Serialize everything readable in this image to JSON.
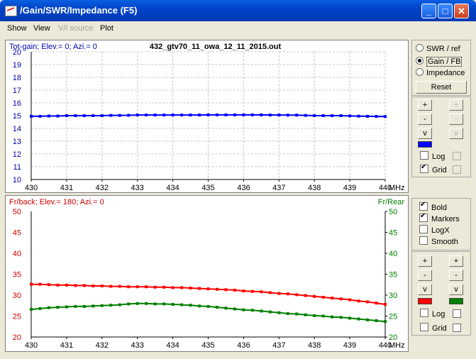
{
  "window": {
    "title": "/Gain/SWR/Impedance (F5)",
    "minimize_glyph": "_",
    "maximize_glyph": "□",
    "close_glyph": "✕"
  },
  "menu": [
    {
      "label": "Show",
      "enabled": true
    },
    {
      "label": "View",
      "enabled": true
    },
    {
      "label": "V/I source",
      "enabled": false
    },
    {
      "label": "Plot",
      "enabled": true
    }
  ],
  "top_panel": {
    "radios": [
      {
        "label": "SWR / ref",
        "selected": false
      },
      {
        "label": "Gain / FB",
        "selected": true
      },
      {
        "label": "Impedance",
        "selected": false
      }
    ],
    "reset_label": "Reset",
    "plus": "+",
    "minus": "-",
    "v": "v",
    "swatch_color": "#0000ff",
    "log_label": "Log",
    "grid_label": "Grid",
    "log_checked": false,
    "grid_checked": true
  },
  "bottom_panel": {
    "bold_label": "Bold",
    "markers_label": "Markers",
    "logx_label": "LogX",
    "smooth_label": "Smooth",
    "bold_checked": true,
    "markers_checked": true,
    "logx_checked": false,
    "smooth_checked": false,
    "plus": "+",
    "minus": "-",
    "v": "v",
    "left_swatch_color": "#ff0000",
    "right_swatch_color": "#008000",
    "log_label": "Log",
    "grid_label": "Grid"
  },
  "chart_data": [
    {
      "type": "line",
      "title": "432_gtv70_11_owa_12_11_2015.out",
      "ylabel": "Tot-gain; Elev.= 0; Azi.= 0",
      "xlabel": "MHz",
      "xlim": [
        430,
        440
      ],
      "ylim": [
        10,
        20
      ],
      "x_ticks": [
        "430",
        "431",
        "432",
        "433",
        "434",
        "435",
        "436",
        "437",
        "438",
        "439",
        "440"
      ],
      "y_ticks": [
        "10",
        "11",
        "12",
        "13",
        "14",
        "15",
        "16",
        "17",
        "18",
        "19",
        "20"
      ],
      "grid": true,
      "series": [
        {
          "color": "#0000ff",
          "x": [
            430,
            430.25,
            430.5,
            430.75,
            431,
            431.25,
            431.5,
            431.75,
            432,
            432.25,
            432.5,
            432.75,
            433,
            433.25,
            433.5,
            433.75,
            434,
            434.25,
            434.5,
            434.75,
            435,
            435.25,
            435.5,
            435.75,
            436,
            436.25,
            436.5,
            436.75,
            437,
            437.25,
            437.5,
            437.75,
            438,
            438.25,
            438.5,
            438.75,
            439,
            439.25,
            439.5,
            439.75,
            440
          ],
          "values": [
            14.95,
            14.95,
            14.97,
            14.97,
            15.0,
            15.0,
            15.0,
            15.0,
            15.0,
            15.02,
            15.02,
            15.03,
            15.05,
            15.05,
            15.05,
            15.05,
            15.05,
            15.05,
            15.05,
            15.05,
            15.06,
            15.06,
            15.06,
            15.06,
            15.06,
            15.06,
            15.06,
            15.05,
            15.05,
            15.04,
            15.04,
            15.02,
            15.0,
            15.0,
            15.0,
            15.0,
            14.98,
            14.96,
            14.95,
            14.94,
            14.93
          ]
        }
      ]
    },
    {
      "type": "line",
      "ylabel": "Fr/back; Elev.= 180; Azi.= 0",
      "y2label": "Fr/Rear",
      "xlabel": "MHz",
      "xlim": [
        430,
        440
      ],
      "ylim": [
        20,
        50
      ],
      "x_ticks": [
        "430",
        "431",
        "432",
        "433",
        "434",
        "435",
        "436",
        "437",
        "438",
        "439",
        "440"
      ],
      "y_ticks": [
        "20",
        "25",
        "30",
        "35",
        "40",
        "45",
        "50"
      ],
      "grid": false,
      "series": [
        {
          "color": "#ff0000",
          "x": [
            430,
            430.25,
            430.5,
            430.75,
            431,
            431.25,
            431.5,
            431.75,
            432,
            432.25,
            432.5,
            432.75,
            433,
            433.25,
            433.5,
            433.75,
            434,
            434.25,
            434.5,
            434.75,
            435,
            435.25,
            435.5,
            435.75,
            436,
            436.25,
            436.5,
            436.75,
            437,
            437.25,
            437.5,
            437.75,
            438,
            438.25,
            438.5,
            438.75,
            439,
            439.25,
            439.5,
            439.75,
            440
          ],
          "values": [
            32.6,
            32.6,
            32.5,
            32.4,
            32.4,
            32.3,
            32.3,
            32.2,
            32.2,
            32.1,
            32.1,
            32.0,
            32.0,
            32.0,
            31.9,
            31.9,
            31.8,
            31.8,
            31.7,
            31.6,
            31.5,
            31.4,
            31.3,
            31.2,
            31.0,
            30.9,
            30.8,
            30.6,
            30.4,
            30.3,
            30.1,
            29.9,
            29.7,
            29.5,
            29.3,
            29.1,
            28.9,
            28.6,
            28.4,
            28.1,
            27.8
          ]
        },
        {
          "color": "#008000",
          "x": [
            430,
            430.25,
            430.5,
            430.75,
            431,
            431.25,
            431.5,
            431.75,
            432,
            432.25,
            432.5,
            432.75,
            433,
            433.25,
            433.5,
            433.75,
            434,
            434.25,
            434.5,
            434.75,
            435,
            435.25,
            435.5,
            435.75,
            436,
            436.25,
            436.5,
            436.75,
            437,
            437.25,
            437.5,
            437.75,
            438,
            438.25,
            438.5,
            438.75,
            439,
            439.25,
            439.5,
            439.75,
            440
          ],
          "values": [
            26.6,
            26.8,
            27.0,
            27.1,
            27.2,
            27.3,
            27.3,
            27.4,
            27.5,
            27.6,
            27.7,
            27.9,
            28.0,
            28.0,
            27.9,
            27.9,
            27.8,
            27.7,
            27.6,
            27.4,
            27.3,
            27.1,
            26.9,
            26.7,
            26.5,
            26.4,
            26.2,
            26.0,
            25.8,
            25.6,
            25.5,
            25.3,
            25.1,
            25.0,
            24.8,
            24.7,
            24.5,
            24.3,
            24.1,
            23.9,
            23.7
          ]
        }
      ]
    }
  ]
}
